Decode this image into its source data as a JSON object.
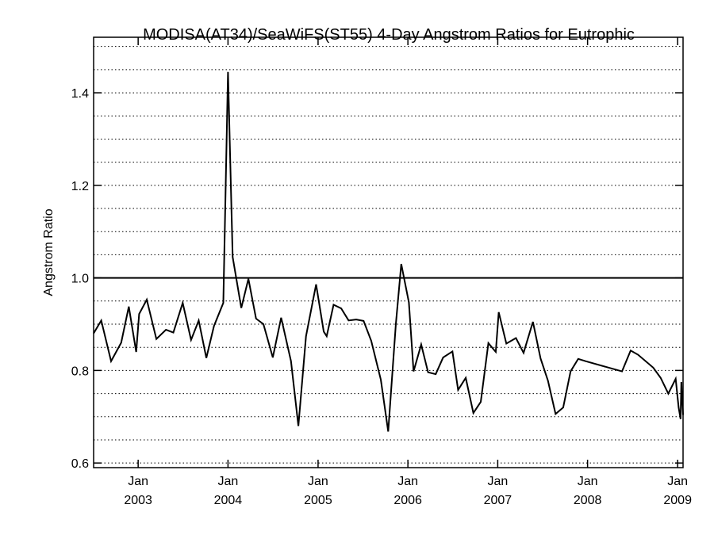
{
  "chart_data": {
    "type": "line",
    "title": "MODISA(AT34)/SeaWiFS(ST55) 4-Day Angstrom Ratios for Eutrophic",
    "xlabel": "",
    "ylabel": "Angstrom Ratio",
    "xlim": [
      "2002-07-04",
      "2009-01-23"
    ],
    "ylim": [
      0.59,
      1.52
    ],
    "grid": true,
    "grid_style": "dotted",
    "grid_y_values": [
      0.6,
      0.65,
      0.7,
      0.75,
      0.8,
      0.85,
      0.9,
      0.95,
      1.0,
      1.05,
      1.1,
      1.15,
      1.2,
      1.25,
      1.3,
      1.35,
      1.4,
      1.45,
      1.5
    ],
    "reference_line": {
      "y": 1.0,
      "color": "#000000"
    },
    "y_ticks": [
      {
        "value": 0.6,
        "label": "0.6"
      },
      {
        "value": 0.8,
        "label": "0.8"
      },
      {
        "value": 1.0,
        "label": "1.0"
      },
      {
        "value": 1.2,
        "label": "1.2"
      },
      {
        "value": 1.4,
        "label": "1.4"
      }
    ],
    "x_ticks": [
      {
        "date": "2003-01-01",
        "month": "Jan",
        "year": "2003"
      },
      {
        "date": "2004-01-01",
        "month": "Jan",
        "year": "2004"
      },
      {
        "date": "2005-01-01",
        "month": "Jan",
        "year": "2005"
      },
      {
        "date": "2006-01-01",
        "month": "Jan",
        "year": "2006"
      },
      {
        "date": "2007-01-01",
        "month": "Jan",
        "year": "2007"
      },
      {
        "date": "2008-01-01",
        "month": "Jan",
        "year": "2008"
      },
      {
        "date": "2009-01-01",
        "month": "Jan",
        "year": "2009"
      }
    ],
    "series": [
      {
        "color": "#000000",
        "points": [
          [
            "2002-07-04",
            0.88
          ],
          [
            "2002-08-04",
            0.908
          ],
          [
            "2002-09-13",
            0.82
          ],
          [
            "2002-10-24",
            0.86
          ],
          [
            "2002-11-24",
            0.938
          ],
          [
            "2002-12-24",
            0.84
          ],
          [
            "2003-01-05",
            0.922
          ],
          [
            "2003-02-05",
            0.953
          ],
          [
            "2003-03-16",
            0.868
          ],
          [
            "2003-04-24",
            0.888
          ],
          [
            "2003-05-24",
            0.882
          ],
          [
            "2003-07-01",
            0.946
          ],
          [
            "2003-08-04",
            0.866
          ],
          [
            "2003-09-04",
            0.908
          ],
          [
            "2003-10-05",
            0.827
          ],
          [
            "2003-11-05",
            0.896
          ],
          [
            "2003-12-13",
            0.946
          ],
          [
            "2004-01-01",
            1.445
          ],
          [
            "2004-01-20",
            1.045
          ],
          [
            "2004-02-24",
            0.935
          ],
          [
            "2004-03-24",
            0.998
          ],
          [
            "2004-04-24",
            0.912
          ],
          [
            "2004-05-24",
            0.9
          ],
          [
            "2004-07-01",
            0.828
          ],
          [
            "2004-08-04",
            0.914
          ],
          [
            "2004-09-13",
            0.82
          ],
          [
            "2004-10-13",
            0.68
          ],
          [
            "2004-11-13",
            0.874
          ],
          [
            "2004-12-24",
            0.986
          ],
          [
            "2005-01-24",
            0.884
          ],
          [
            "2005-02-05",
            0.874
          ],
          [
            "2005-03-05",
            0.942
          ],
          [
            "2005-04-05",
            0.934
          ],
          [
            "2005-05-05",
            0.908
          ],
          [
            "2005-06-05",
            0.91
          ],
          [
            "2005-07-05",
            0.907
          ],
          [
            "2005-08-05",
            0.864
          ],
          [
            "2005-09-13",
            0.78
          ],
          [
            "2005-10-13",
            0.668
          ],
          [
            "2005-11-13",
            0.9
          ],
          [
            "2005-12-05",
            1.03
          ],
          [
            "2006-01-05",
            0.947
          ],
          [
            "2006-01-24",
            0.798
          ],
          [
            "2006-02-24",
            0.856
          ],
          [
            "2006-03-24",
            0.796
          ],
          [
            "2006-04-24",
            0.792
          ],
          [
            "2006-05-24",
            0.828
          ],
          [
            "2006-07-01",
            0.841
          ],
          [
            "2006-07-24",
            0.758
          ],
          [
            "2006-08-24",
            0.784
          ],
          [
            "2006-09-24",
            0.708
          ],
          [
            "2006-10-24",
            0.732
          ],
          [
            "2006-11-24",
            0.859
          ],
          [
            "2006-12-24",
            0.84
          ],
          [
            "2007-01-05",
            0.926
          ],
          [
            "2007-02-05",
            0.858
          ],
          [
            "2007-03-16",
            0.87
          ],
          [
            "2007-04-16",
            0.838
          ],
          [
            "2007-05-24",
            0.905
          ],
          [
            "2007-06-24",
            0.826
          ],
          [
            "2007-07-24",
            0.778
          ],
          [
            "2007-08-24",
            0.706
          ],
          [
            "2007-09-24",
            0.72
          ],
          [
            "2007-10-24",
            0.798
          ],
          [
            "2007-11-24",
            0.825
          ],
          [
            "2007-12-24",
            0.82
          ],
          [
            "2008-05-20",
            0.798
          ],
          [
            "2008-06-24",
            0.843
          ],
          [
            "2008-07-24",
            0.834
          ],
          [
            "2008-09-24",
            0.806
          ],
          [
            "2008-10-24",
            0.784
          ],
          [
            "2008-11-24",
            0.75
          ],
          [
            "2008-12-24",
            0.782
          ],
          [
            "2009-01-05",
            0.72
          ],
          [
            "2009-01-13",
            0.695
          ],
          [
            "2009-01-16",
            0.775
          ],
          [
            "2009-01-23",
            0.704
          ]
        ]
      }
    ]
  }
}
